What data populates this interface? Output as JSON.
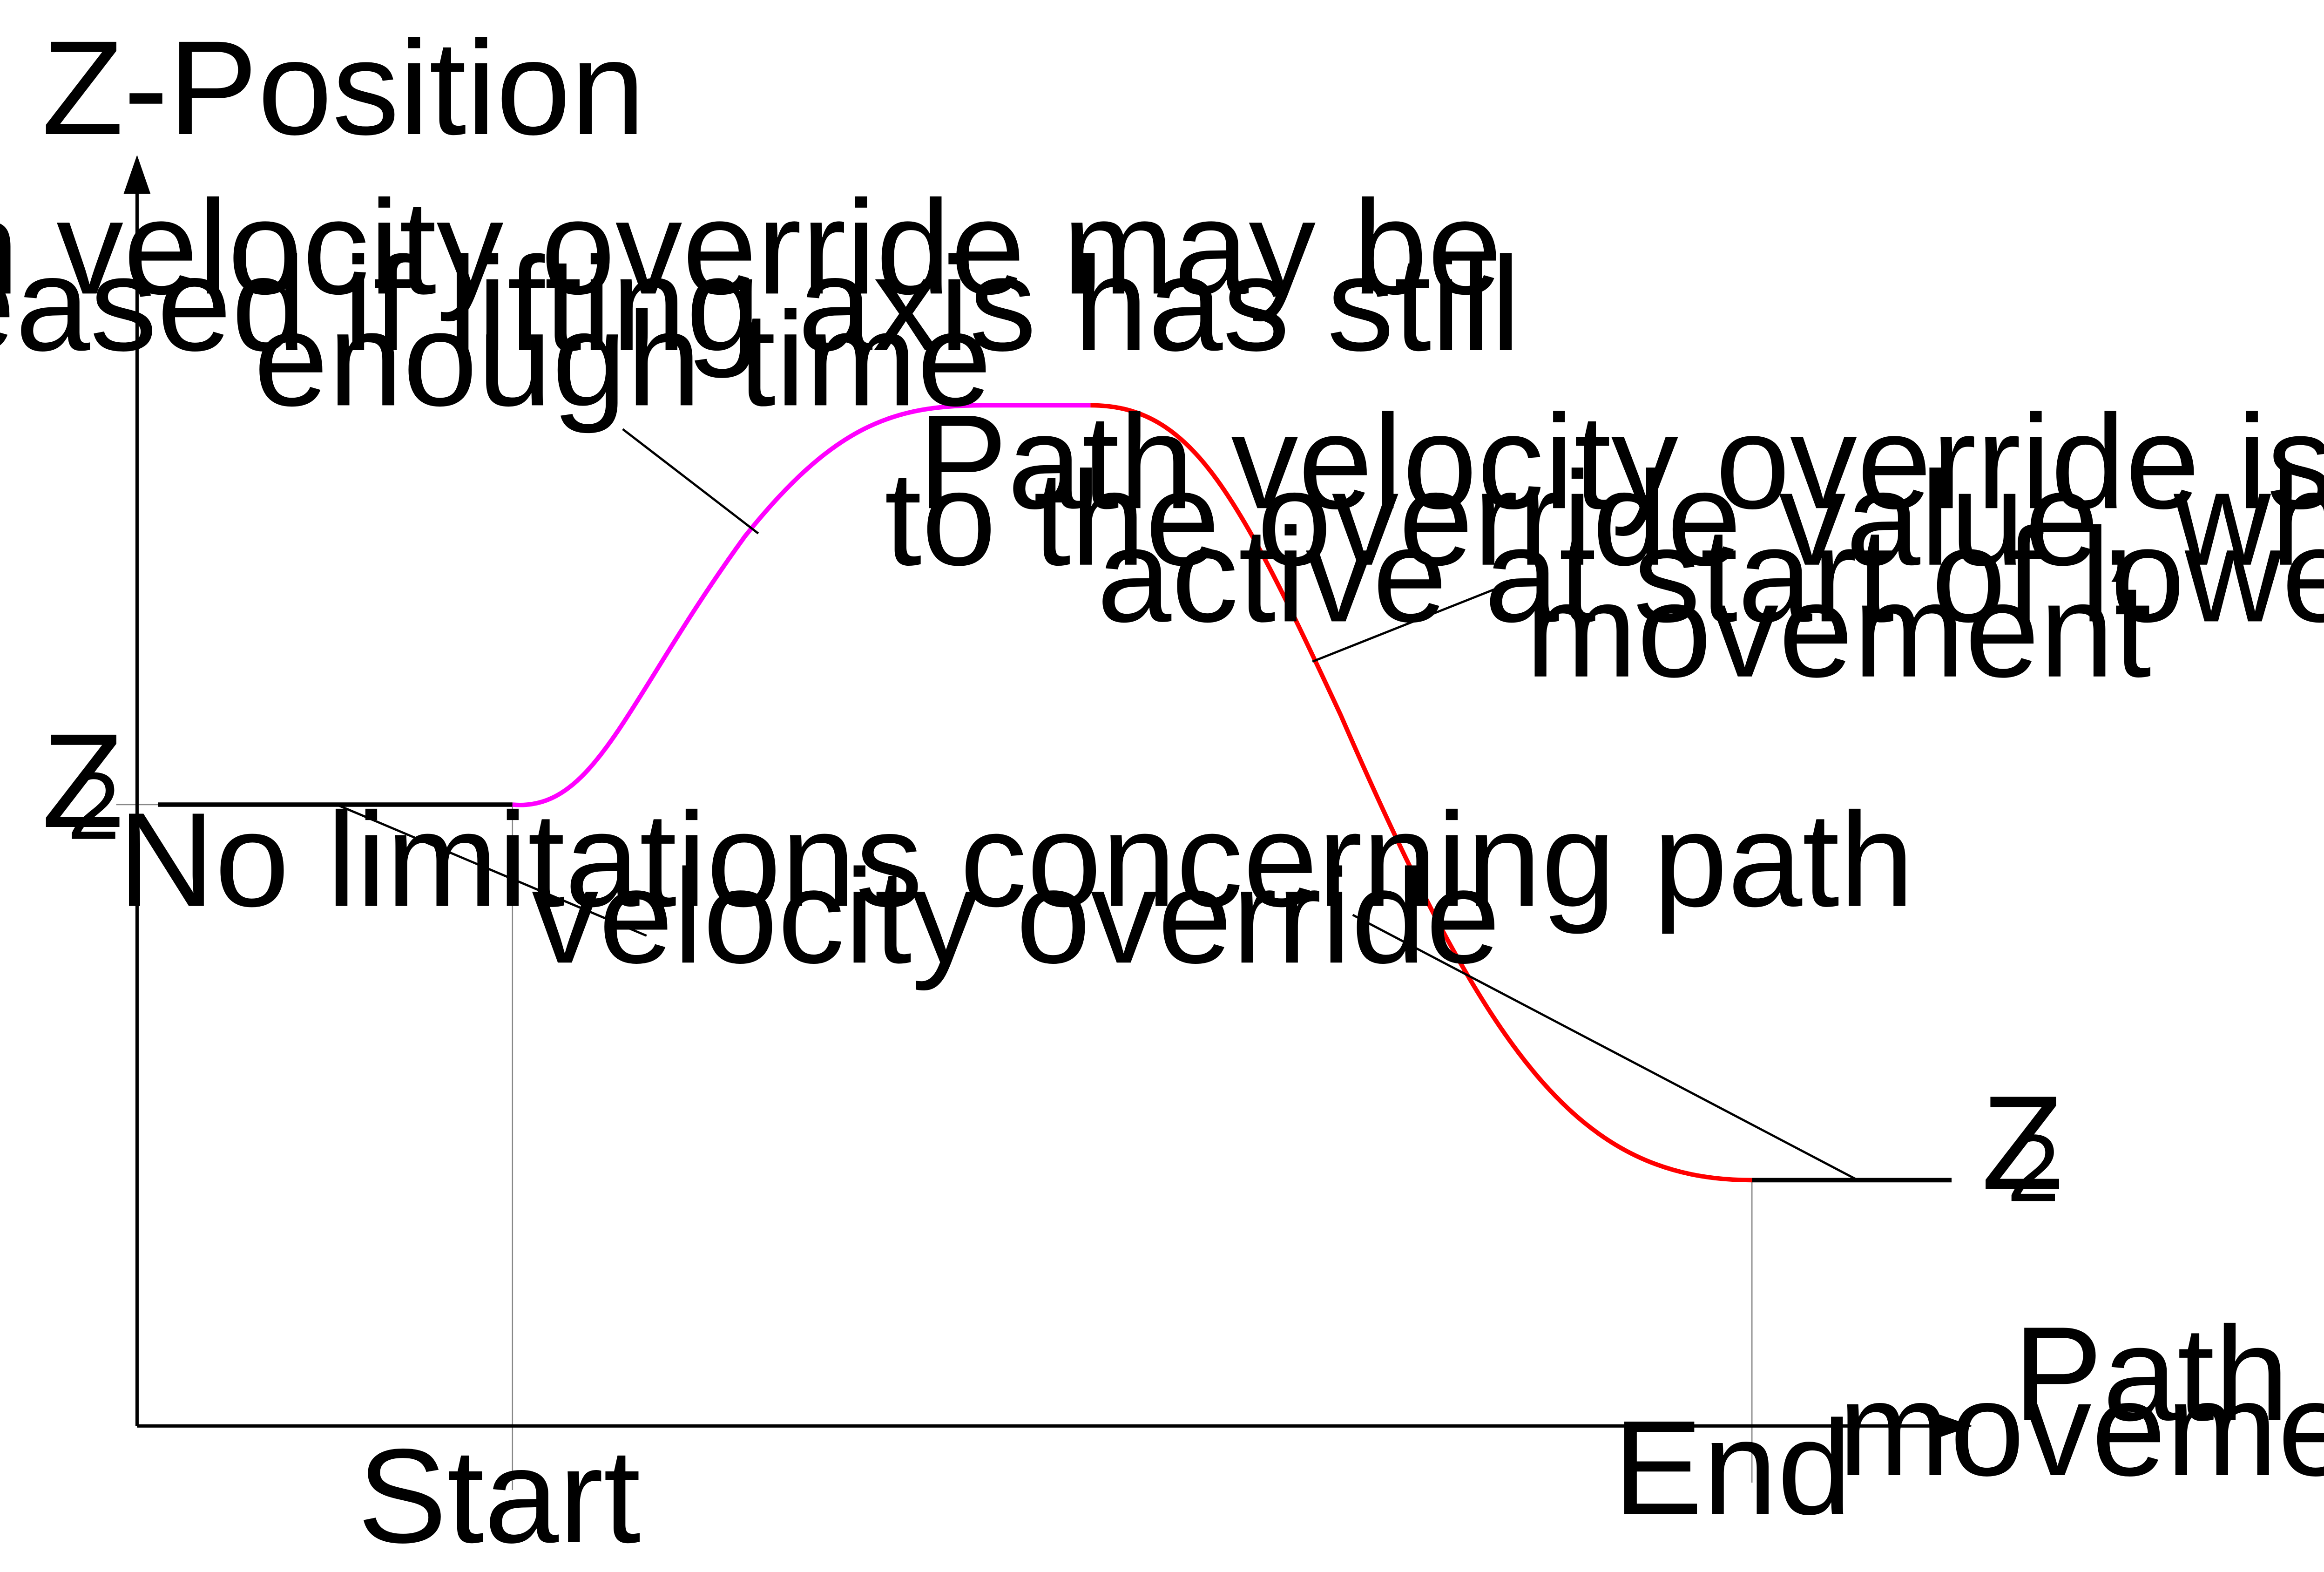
{
  "axes": {
    "y_label": "Z-Position",
    "x_label": [
      "Path",
      "movement"
    ],
    "x_ticks": {
      "start": "Start",
      "end": "End"
    },
    "z_level_label": {
      "base": "Z",
      "subscript": "2"
    }
  },
  "annotations": {
    "increase_note": [
      "Path velocity override may be",
      "increased if lifting axis has still",
      "enough time"
    ],
    "limited_note": [
      "Path velocity override is limited",
      "to the override value, which was",
      "active at start of lowering",
      "movement"
    ],
    "no_limit_note": [
      "No limitations concerning path",
      "velocity override"
    ]
  },
  "colors": {
    "rising_segment": "#ff00ff",
    "lowering_segment": "#ff0000",
    "flat_segment": "#000000",
    "axes": "#000000",
    "leader_lines": "#000000",
    "guide_lines": "#888888"
  }
}
